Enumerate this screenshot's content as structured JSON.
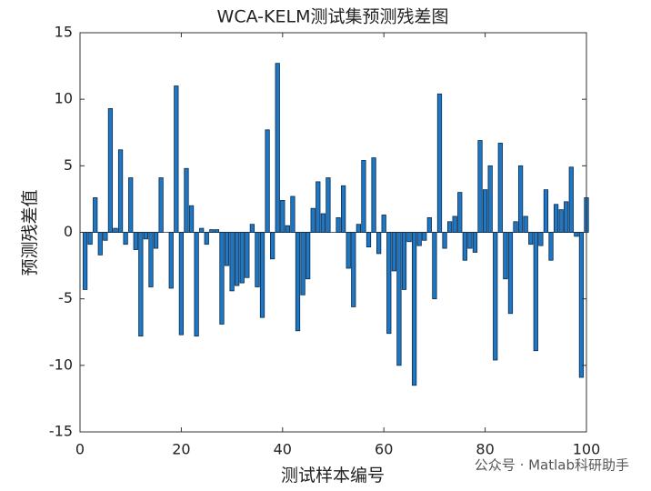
{
  "chart_data": {
    "type": "bar",
    "title": "WCA-KELM测试集预测残差图",
    "x_label": "测试样本编号",
    "y_label": "预测残差值",
    "annotation": "公众号 · Matlab科研助手",
    "x": [
      1,
      2,
      3,
      4,
      5,
      6,
      7,
      8,
      9,
      10,
      11,
      12,
      13,
      14,
      15,
      16,
      17,
      18,
      19,
      20,
      21,
      22,
      23,
      24,
      25,
      26,
      27,
      28,
      29,
      30,
      31,
      32,
      33,
      34,
      35,
      36,
      37,
      38,
      39,
      40,
      41,
      42,
      43,
      44,
      45,
      46,
      47,
      48,
      49,
      50,
      51,
      52,
      53,
      54,
      55,
      56,
      57,
      58,
      59,
      60,
      61,
      62,
      63,
      64,
      65,
      66,
      67,
      68,
      69,
      70,
      71,
      72,
      73,
      74,
      75,
      76,
      77,
      78,
      79,
      80,
      81,
      82,
      83,
      84,
      85,
      86,
      87,
      88,
      89,
      90,
      91,
      92,
      93,
      94,
      95,
      96,
      97,
      98,
      99,
      100
    ],
    "values": [
      -4.3,
      -0.9,
      2.6,
      -1.7,
      -0.6,
      9.3,
      0.3,
      6.2,
      -0.9,
      4.1,
      -1.3,
      -7.8,
      -0.5,
      -4.1,
      -1.2,
      4.1,
      0,
      -4.2,
      11,
      -7.7,
      4.8,
      2.0,
      -7.8,
      0.3,
      -0.9,
      0.2,
      0.2,
      -6.9,
      -2.5,
      -4.4,
      -4.0,
      -3.8,
      -3.4,
      0.6,
      -4.1,
      -6.4,
      7.7,
      -2.0,
      12.7,
      2.4,
      0.5,
      2.7,
      -7.4,
      -4.7,
      -3.5,
      1.8,
      3.8,
      1.4,
      4.1,
      0,
      1.1,
      3.5,
      -2.7,
      -5.6,
      0.6,
      5.4,
      -1.1,
      5.6,
      -1.6,
      1.3,
      -7.6,
      -2.9,
      -10.0,
      -4.3,
      -0.7,
      -11.5,
      -1.0,
      -0.6,
      1.1,
      -5.0,
      10.4,
      -1.2,
      0.8,
      1.2,
      3.0,
      -2.1,
      -1.2,
      -1.5,
      6.9,
      3.2,
      5.0,
      -9.6,
      6.7,
      -3.5,
      -6.1,
      0.8,
      5.0,
      1.2,
      -0.9,
      -8.9,
      -1.0,
      3.2,
      -2.1,
      2.1,
      1.7,
      2.3,
      4.9,
      -0.3,
      -10.9,
      2.6
    ],
    "color": "#1f77c4",
    "edge_color": "#0a2a4a",
    "xlim": [
      0,
      100
    ],
    "xticks": [
      0,
      20,
      40,
      60,
      80,
      100
    ],
    "ylim": [
      -15,
      15
    ],
    "yticks": [
      -15,
      -10,
      -5,
      0,
      5,
      10,
      15
    ]
  }
}
